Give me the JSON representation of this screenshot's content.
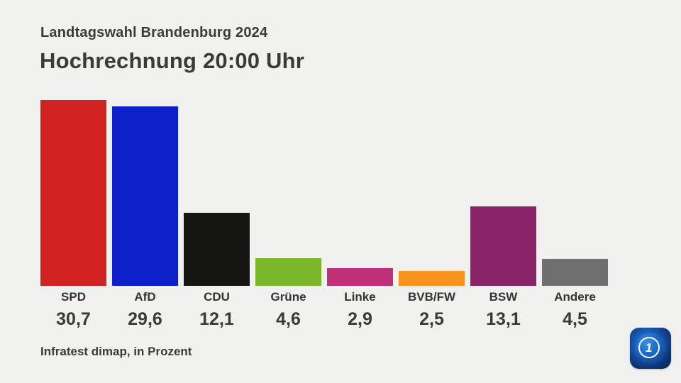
{
  "header": {
    "subtitle": "Landtagswahl Brandenburg 2024",
    "title": "Hochrechnung 20:00 Uhr"
  },
  "footer": {
    "source": "Infratest dimap, in Prozent"
  },
  "logo": {
    "name": "ARD-logo",
    "glyph": "1"
  },
  "colors": {
    "background": "#f0f0ee",
    "text": "#3a3a38"
  },
  "chart_data": {
    "type": "bar",
    "title": "Hochrechnung 20:00 Uhr",
    "subtitle": "Landtagswahl Brandenburg 2024",
    "unit": "Prozent",
    "source": "Infratest dimap",
    "categories": [
      "SPD",
      "AfD",
      "CDU",
      "Grüne",
      "Linke",
      "BVB/FW",
      "BSW",
      "Andere"
    ],
    "values": [
      30.7,
      29.6,
      12.1,
      4.6,
      2.9,
      2.5,
      13.1,
      4.5
    ],
    "value_labels": [
      "30,7",
      "29,6",
      "12,1",
      "4,6",
      "2,9",
      "2,5",
      "13,1",
      "4,5"
    ],
    "bar_colors": [
      "#d32222",
      "#0b20c8",
      "#151513",
      "#7ab829",
      "#bf3078",
      "#f8941e",
      "#8a2368",
      "#6f6f6f"
    ],
    "ylim": [
      0,
      30.8
    ],
    "grid": false,
    "legend_position": "below-bars"
  }
}
